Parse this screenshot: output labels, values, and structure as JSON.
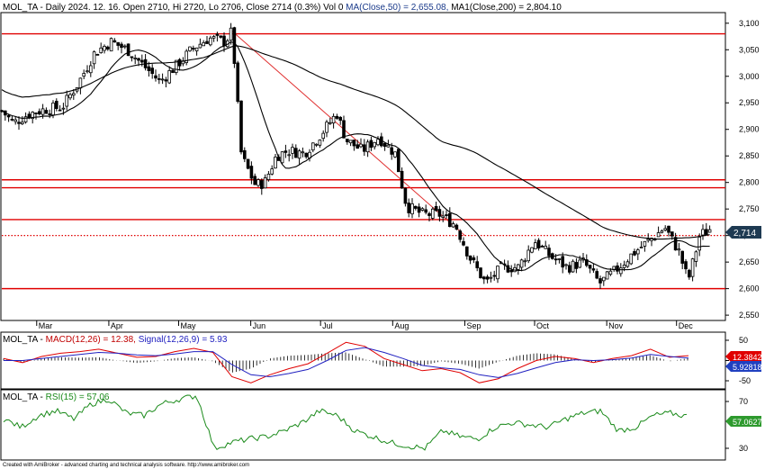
{
  "header": {
    "symbol_prefix": "MOL_TA - Daily 2024. 12. 16. Open 2710, Hi 2720, Lo 2706, Close 2714 (0.3%) Vol 0 ",
    "ma50_label": "MA(Close,50) = 2,655.08, ",
    "ma200_label": "MA1(Close,200) = 2,804.10"
  },
  "macd_header": {
    "prefix": "MOL_TA - ",
    "macd_label": "MACD(12,26) = 12.38, ",
    "signal_label": "Signal(12,26,9) = 5.93"
  },
  "rsi_header": {
    "prefix": "MOL_TA - ",
    "rsi_label": "RSI(15) = 57.06"
  },
  "footer": "Created with AmiBroker - advanced charting and technical analysis software. http://www.amibroker.com",
  "colors": {
    "up": "#ffffff",
    "down": "#000000",
    "support_line": "#e00000",
    "trend_line": "#e03030",
    "ma": "#000000",
    "macd": "#e00000",
    "signal": "#2020c0",
    "rsi": "#1a8a1a",
    "price_badge": "#1e3a52",
    "macd_badge": "#e00000",
    "signal_badge": "#2040c0",
    "rsi_badge": "#2e9a2e"
  },
  "chart_data": [
    {
      "type": "candlestick",
      "title": "MOL_TA - Daily 2024. 12. 16.",
      "x_labels": [
        "Mar",
        "Apr",
        "May",
        "Jun",
        "Jul",
        "Aug",
        "Sep",
        "Oct",
        "Nov",
        "Dec"
      ],
      "y_ticks": [
        "3,100",
        "3,050",
        "3,000",
        "2,950",
        "2,900",
        "2,850",
        "2,800",
        "2,750",
        "2,700",
        "2,650",
        "2,600",
        "2,550"
      ],
      "ylim": [
        2540,
        3120
      ],
      "last_close_label": "2,714",
      "last_close": 2714,
      "horizontal_lines": [
        {
          "value": 3080,
          "style": "solid"
        },
        {
          "value": 2805,
          "style": "solid"
        },
        {
          "value": 2790,
          "style": "solid"
        },
        {
          "value": 2730,
          "style": "solid"
        },
        {
          "value": 2700,
          "style": "dotted"
        },
        {
          "value": 2600,
          "style": "solid"
        }
      ],
      "trend_line": {
        "from": [
          "May 24",
          3085
        ],
        "to": [
          "Sep 1",
          2700
        ]
      },
      "ohlc_anchors": [
        [
          "Feb 15",
          2935
        ],
        [
          "Feb 20",
          2912
        ],
        [
          "Feb 27",
          2930
        ],
        [
          "Mar 5",
          2938
        ],
        [
          "Mar 12",
          2942
        ],
        [
          "Mar 19",
          2988
        ],
        [
          "Mar 26",
          3045
        ],
        [
          "Apr 2",
          3065
        ],
        [
          "Apr 9",
          3050
        ],
        [
          "Apr 16",
          3020
        ],
        [
          "Apr 23",
          2990
        ],
        [
          "Apr 30",
          3020
        ],
        [
          "May 7",
          3052
        ],
        [
          "May 14",
          3072
        ],
        [
          "May 21",
          3065
        ],
        [
          "May 24",
          3085
        ],
        [
          "May 28",
          2850
        ],
        [
          "Jun 3",
          2795
        ],
        [
          "Jun 7",
          2800
        ],
        [
          "Jun 12",
          2850
        ],
        [
          "Jun 17",
          2860
        ],
        [
          "Jun 24",
          2855
        ],
        [
          "Jul 1",
          2890
        ],
        [
          "Jul 8",
          2930
        ],
        [
          "Jul 12",
          2880
        ],
        [
          "Jul 19",
          2860
        ],
        [
          "Jul 26",
          2885
        ],
        [
          "Aug 2",
          2855
        ],
        [
          "Aug 7",
          2755
        ],
        [
          "Aug 14",
          2740
        ],
        [
          "Aug 21",
          2740
        ],
        [
          "Aug 28",
          2720
        ],
        [
          "Sep 3",
          2660
        ],
        [
          "Sep 10",
          2610
        ],
        [
          "Sep 17",
          2640
        ],
        [
          "Sep 24",
          2640
        ],
        [
          "Oct 1",
          2690
        ],
        [
          "Oct 8",
          2660
        ],
        [
          "Oct 15",
          2640
        ],
        [
          "Oct 22",
          2650
        ],
        [
          "Oct 29",
          2610
        ],
        [
          "Nov 5",
          2635
        ],
        [
          "Nov 12",
          2665
        ],
        [
          "Nov 19",
          2690
        ],
        [
          "Nov 26",
          2715
        ],
        [
          "Dec 2",
          2670
        ],
        [
          "Dec 6",
          2615
        ],
        [
          "Dec 11",
          2700
        ],
        [
          "Dec 16",
          2714
        ]
      ]
    },
    {
      "type": "line",
      "title": "MACD(12,26)",
      "y_ticks": [
        "50",
        "0",
        "-50"
      ],
      "ylim": [
        -70,
        70
      ],
      "macd_value_label": "12.3842",
      "signal_value_label": "5.92818",
      "series": [
        {
          "name": "MACD(12,26)",
          "values": [
            5,
            -5,
            10,
            18,
            22,
            28,
            18,
            8,
            10,
            22,
            30,
            20,
            -40,
            -55,
            -35,
            -20,
            -8,
            18,
            45,
            35,
            5,
            -10,
            -25,
            -20,
            -30,
            -55,
            -45,
            -20,
            0,
            10,
            5,
            -5,
            5,
            12,
            28,
            8,
            12
          ]
        },
        {
          "name": "Signal(12,26,9)",
          "values": [
            0,
            0,
            5,
            10,
            15,
            20,
            18,
            14,
            12,
            16,
            22,
            22,
            -10,
            -35,
            -40,
            -32,
            -22,
            0,
            25,
            32,
            20,
            5,
            -12,
            -18,
            -22,
            -35,
            -42,
            -32,
            -18,
            -5,
            2,
            0,
            2,
            6,
            15,
            10,
            6
          ]
        }
      ]
    },
    {
      "type": "line",
      "title": "RSI(15)",
      "y_ticks": [
        "70",
        "30"
      ],
      "ylim": [
        20,
        80
      ],
      "rsi_value_label": "57.0627",
      "series": [
        {
          "name": "RSI(15)",
          "values": [
            55,
            48,
            58,
            62,
            55,
            68,
            72,
            60,
            58,
            68,
            72,
            75,
            30,
            35,
            38,
            40,
            45,
            52,
            62,
            58,
            45,
            40,
            35,
            32,
            30,
            45,
            40,
            38,
            48,
            52,
            50,
            48,
            55,
            60,
            62,
            45,
            48,
            58,
            60,
            57
          ]
        }
      ]
    }
  ]
}
